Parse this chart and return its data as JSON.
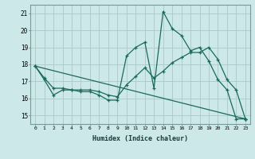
{
  "xlabel": "Humidex (Indice chaleur)",
  "xlim": [
    -0.5,
    23.5
  ],
  "ylim": [
    14.5,
    21.5
  ],
  "yticks": [
    15,
    16,
    17,
    18,
    19,
    20,
    21
  ],
  "xticks": [
    0,
    1,
    2,
    3,
    4,
    5,
    6,
    7,
    8,
    9,
    10,
    11,
    12,
    13,
    14,
    15,
    16,
    17,
    18,
    19,
    20,
    21,
    22,
    23
  ],
  "bg_color": "#cce8e8",
  "grid_color": "#b0cccc",
  "line_color": "#1a6a5a",
  "series1_x": [
    0,
    1,
    2,
    3,
    4,
    5,
    6,
    7,
    8,
    9,
    10,
    11,
    12,
    13,
    14,
    15,
    16,
    17,
    18,
    19,
    20,
    21,
    22,
    23
  ],
  "series1_y": [
    17.9,
    17.1,
    16.2,
    16.5,
    16.5,
    16.4,
    16.4,
    16.2,
    15.9,
    15.9,
    18.5,
    19.0,
    19.3,
    16.6,
    21.1,
    20.1,
    19.7,
    18.8,
    19.0,
    18.2,
    17.1,
    16.5,
    14.8,
    14.8
  ],
  "series2_x": [
    0,
    1,
    2,
    3,
    4,
    5,
    6,
    7,
    8,
    9,
    10,
    11,
    12,
    13,
    14,
    15,
    16,
    17,
    18,
    19,
    20,
    21,
    22,
    23
  ],
  "series2_y": [
    17.9,
    17.2,
    16.6,
    16.6,
    16.5,
    16.5,
    16.5,
    16.4,
    16.2,
    16.1,
    16.8,
    17.3,
    17.8,
    17.2,
    17.6,
    18.1,
    18.4,
    18.7,
    18.7,
    19.0,
    18.3,
    17.1,
    16.5,
    14.8
  ],
  "series3_x": [
    0,
    23
  ],
  "series3_y": [
    17.9,
    14.8
  ]
}
